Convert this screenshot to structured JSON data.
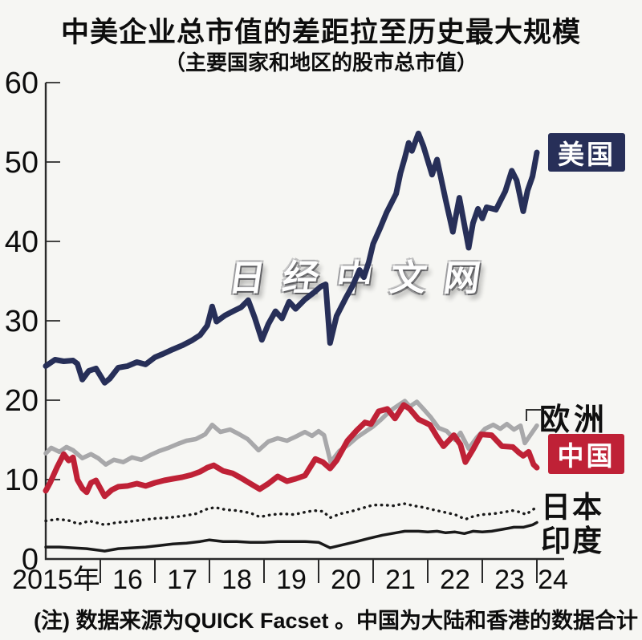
{
  "title": "中美企业总市值的差距拉至历史最大规模",
  "subtitle": "（主要国家和地区的股市总市值）",
  "watermark": "日经中文网",
  "note": "(注) 数据来源为QUICK Facset 。中国为大陆和香港的数据合计",
  "colors": {
    "us_navy": "#272f58",
    "china_red": "#bf2136",
    "europe_gray": "#a8a8aa",
    "black_line": "#1a1a1a",
    "axis": "#2a2a2a",
    "background": "#f6f6f3"
  },
  "chart_data": {
    "type": "line",
    "title": "中美企业总市值的差距拉至历史最大规模",
    "subtitle": "（主要国家和地区的股市总市值）",
    "xlabel": "",
    "ylabel": "",
    "ylim": [
      0,
      60
    ],
    "xlim": [
      2015,
      2024.45
    ],
    "grid": false,
    "legend_position": "right-inline",
    "y_ticks": [
      0,
      10,
      20,
      30,
      40,
      50,
      60
    ],
    "y_tick_labels": [
      "0",
      "10",
      "20",
      "30",
      "40",
      "50",
      "60"
    ],
    "x_tick_years": [
      2015,
      2016,
      2017,
      2018,
      2019,
      2020,
      2021,
      2022,
      2023,
      2024
    ],
    "x_tick_labels": [
      "2015年",
      "16",
      "17",
      "18",
      "19",
      "20",
      "21",
      "22",
      "23",
      "24"
    ],
    "series": [
      {
        "name": "美国",
        "key": "us",
        "color": "#272f58",
        "style": "solid",
        "stroke_width": 7,
        "label_type": "box",
        "x": [
          2015.0,
          2015.17,
          2015.33,
          2015.5,
          2015.58,
          2015.67,
          2015.79,
          2015.92,
          2016.08,
          2016.17,
          2016.33,
          2016.5,
          2016.67,
          2016.83,
          2017.0,
          2017.17,
          2017.33,
          2017.5,
          2017.67,
          2017.83,
          2017.96,
          2018.05,
          2018.13,
          2018.29,
          2018.46,
          2018.58,
          2018.71,
          2018.83,
          2018.96,
          2019.08,
          2019.21,
          2019.33,
          2019.46,
          2019.58,
          2019.75,
          2019.92,
          2020.04,
          2020.13,
          2020.21,
          2020.33,
          2020.5,
          2020.63,
          2020.75,
          2020.83,
          2020.92,
          2021.0,
          2021.13,
          2021.25,
          2021.42,
          2021.5,
          2021.58,
          2021.65,
          2021.71,
          2021.83,
          2021.92,
          2022.0,
          2022.08,
          2022.17,
          2022.33,
          2022.46,
          2022.58,
          2022.75,
          2022.83,
          2022.92,
          2023.0,
          2023.08,
          2023.25,
          2023.42,
          2023.54,
          2023.63,
          2023.75,
          2023.83,
          2023.92,
          2024.0
        ],
        "values": [
          24.3,
          25.1,
          24.9,
          25.0,
          24.6,
          22.6,
          23.7,
          24.0,
          22.2,
          22.7,
          24.1,
          24.3,
          24.8,
          24.5,
          25.4,
          25.9,
          26.4,
          26.9,
          27.5,
          28.2,
          29.4,
          31.8,
          29.9,
          30.7,
          31.3,
          31.7,
          32.6,
          30.4,
          27.6,
          29.6,
          31.2,
          30.3,
          32.4,
          31.5,
          32.7,
          33.6,
          34.3,
          34.6,
          27.2,
          30.6,
          32.9,
          34.5,
          36.4,
          35.5,
          37.4,
          39.7,
          41.7,
          43.7,
          46.0,
          48.6,
          50.5,
          52.4,
          51.4,
          53.6,
          52.0,
          50.2,
          48.4,
          50.3,
          45.2,
          41.2,
          45.5,
          39.2,
          42.3,
          44.1,
          42.9,
          44.3,
          44.0,
          46.3,
          48.9,
          47.7,
          43.8,
          46.4,
          48.2,
          51.2
        ]
      },
      {
        "name": "欧洲",
        "key": "europe",
        "color": "#a8a8aa",
        "style": "solid",
        "stroke_width": 5.5,
        "label_type": "text",
        "x": [
          2015.0,
          2015.1,
          2015.25,
          2015.38,
          2015.5,
          2015.67,
          2015.83,
          2015.96,
          2016.1,
          2016.25,
          2016.42,
          2016.58,
          2016.75,
          2016.92,
          2017.08,
          2017.25,
          2017.42,
          2017.58,
          2017.75,
          2017.92,
          2018.05,
          2018.2,
          2018.38,
          2018.55,
          2018.7,
          2018.9,
          2019.08,
          2019.25,
          2019.42,
          2019.58,
          2019.75,
          2019.88,
          2020.0,
          2020.1,
          2020.22,
          2020.38,
          2020.55,
          2020.7,
          2020.85,
          2021.0,
          2021.15,
          2021.3,
          2021.45,
          2021.58,
          2021.67,
          2021.8,
          2021.92,
          2022.05,
          2022.2,
          2022.35,
          2022.5,
          2022.6,
          2022.75,
          2022.9,
          2023.05,
          2023.2,
          2023.33,
          2023.45,
          2023.58,
          2023.7,
          2023.78,
          2023.88,
          2024.0
        ],
        "values": [
          13.3,
          14.0,
          13.5,
          14.1,
          13.7,
          12.7,
          13.2,
          12.7,
          11.9,
          12.5,
          12.2,
          12.8,
          12.5,
          13.1,
          13.6,
          14.0,
          14.5,
          14.9,
          15.1,
          15.7,
          16.9,
          16.0,
          16.3,
          15.7,
          15.1,
          13.7,
          14.8,
          15.2,
          14.9,
          15.4,
          16.0,
          15.5,
          16.1,
          15.6,
          12.2,
          13.6,
          14.4,
          15.3,
          16.0,
          16.7,
          17.6,
          18.6,
          19.3,
          19.9,
          19.2,
          19.8,
          18.9,
          17.9,
          16.5,
          16.1,
          15.0,
          15.9,
          13.9,
          15.3,
          16.4,
          16.9,
          16.4,
          17.0,
          16.3,
          16.8,
          14.6,
          15.6,
          16.8
        ]
      },
      {
        "name": "中国",
        "key": "china",
        "color": "#bf2136",
        "style": "solid",
        "stroke_width": 7,
        "label_type": "box",
        "x": [
          2015.0,
          2015.08,
          2015.21,
          2015.33,
          2015.42,
          2015.5,
          2015.58,
          2015.67,
          2015.75,
          2015.83,
          2015.92,
          2016.08,
          2016.21,
          2016.33,
          2016.5,
          2016.67,
          2016.83,
          2017.0,
          2017.17,
          2017.33,
          2017.5,
          2017.67,
          2017.83,
          2017.96,
          2018.08,
          2018.25,
          2018.42,
          2018.58,
          2018.75,
          2018.92,
          2019.08,
          2019.25,
          2019.42,
          2019.58,
          2019.75,
          2019.94,
          2020.08,
          2020.21,
          2020.33,
          2020.53,
          2020.7,
          2020.85,
          2020.96,
          2021.1,
          2021.26,
          2021.4,
          2021.56,
          2021.67,
          2021.83,
          2022.04,
          2022.17,
          2022.29,
          2022.48,
          2022.6,
          2022.69,
          2022.83,
          2022.98,
          2023.17,
          2023.36,
          2023.56,
          2023.67,
          2023.75,
          2023.85,
          2023.94,
          2024.0
        ],
        "values": [
          8.6,
          9.6,
          11.6,
          13.2,
          12.4,
          12.8,
          10.0,
          8.9,
          8.4,
          9.6,
          9.9,
          7.9,
          8.7,
          9.1,
          9.2,
          9.5,
          9.2,
          9.6,
          9.9,
          10.1,
          10.3,
          10.6,
          11.0,
          11.5,
          11.8,
          11.1,
          10.8,
          10.2,
          9.5,
          8.8,
          9.5,
          10.4,
          9.8,
          10.1,
          10.5,
          12.6,
          12.2,
          11.4,
          12.4,
          14.9,
          16.2,
          17.2,
          17.0,
          18.6,
          18.9,
          17.7,
          19.4,
          18.9,
          17.6,
          16.9,
          15.4,
          14.2,
          15.6,
          14.4,
          12.2,
          13.8,
          15.7,
          15.6,
          14.2,
          14.1,
          13.4,
          13.0,
          13.5,
          11.9,
          11.5
        ]
      },
      {
        "name": "日本",
        "key": "japan",
        "color": "#1a1a1a",
        "style": "dotted",
        "stroke_width": 3.4,
        "label_type": "text",
        "x": [
          2015.0,
          2015.2,
          2015.4,
          2015.6,
          2015.8,
          2016.08,
          2016.3,
          2016.5,
          2016.75,
          2017.0,
          2017.25,
          2017.5,
          2017.75,
          2017.96,
          2018.1,
          2018.3,
          2018.5,
          2018.75,
          2018.92,
          2019.15,
          2019.35,
          2019.55,
          2019.75,
          2019.92,
          2020.08,
          2020.21,
          2020.4,
          2020.6,
          2020.8,
          2021.0,
          2021.2,
          2021.4,
          2021.55,
          2021.75,
          2021.92,
          2022.1,
          2022.3,
          2022.5,
          2022.69,
          2022.85,
          2023.0,
          2023.2,
          2023.4,
          2023.55,
          2023.7,
          2023.8,
          2023.92,
          2024.0
        ],
        "values": [
          4.8,
          5.0,
          4.9,
          4.4,
          4.8,
          4.3,
          4.6,
          4.7,
          4.9,
          5.1,
          5.2,
          5.4,
          5.7,
          6.3,
          6.5,
          6.2,
          6.1,
          5.8,
          5.3,
          5.6,
          5.7,
          5.6,
          5.9,
          6.1,
          6.0,
          5.2,
          5.7,
          6.0,
          6.4,
          6.8,
          6.8,
          6.7,
          7.0,
          6.7,
          6.5,
          6.2,
          5.9,
          5.6,
          5.0,
          5.4,
          5.6,
          5.7,
          5.9,
          6.1,
          5.9,
          5.6,
          6.2,
          6.5
        ]
      },
      {
        "name": "印度",
        "key": "india",
        "color": "#1a1a1a",
        "style": "solid",
        "stroke_width": 3.5,
        "label_type": "text",
        "x": [
          2015.0,
          2015.25,
          2015.5,
          2015.75,
          2016.08,
          2016.33,
          2016.58,
          2016.83,
          2017.08,
          2017.33,
          2017.58,
          2017.83,
          2018.0,
          2018.25,
          2018.5,
          2018.75,
          2019.0,
          2019.25,
          2019.5,
          2019.75,
          2020.0,
          2020.21,
          2020.45,
          2020.7,
          2020.92,
          2021.17,
          2021.42,
          2021.58,
          2021.83,
          2022.0,
          2022.17,
          2022.33,
          2022.5,
          2022.67,
          2022.83,
          2023.0,
          2023.17,
          2023.42,
          2023.58,
          2023.75,
          2023.92,
          2024.0
        ],
        "values": [
          1.5,
          1.5,
          1.4,
          1.3,
          1.0,
          1.3,
          1.4,
          1.5,
          1.7,
          1.9,
          2.0,
          2.2,
          2.4,
          2.2,
          2.2,
          2.1,
          2.1,
          2.2,
          2.2,
          2.2,
          2.1,
          1.4,
          1.8,
          2.2,
          2.6,
          3.0,
          3.3,
          3.5,
          3.5,
          3.4,
          3.5,
          3.3,
          3.4,
          3.2,
          3.5,
          3.4,
          3.5,
          3.8,
          4.0,
          4.0,
          4.3,
          4.6
        ]
      }
    ]
  },
  "legend": {
    "us": "美国",
    "europe": "欧洲",
    "china": "中国",
    "japan": "日本",
    "india": "印度"
  }
}
